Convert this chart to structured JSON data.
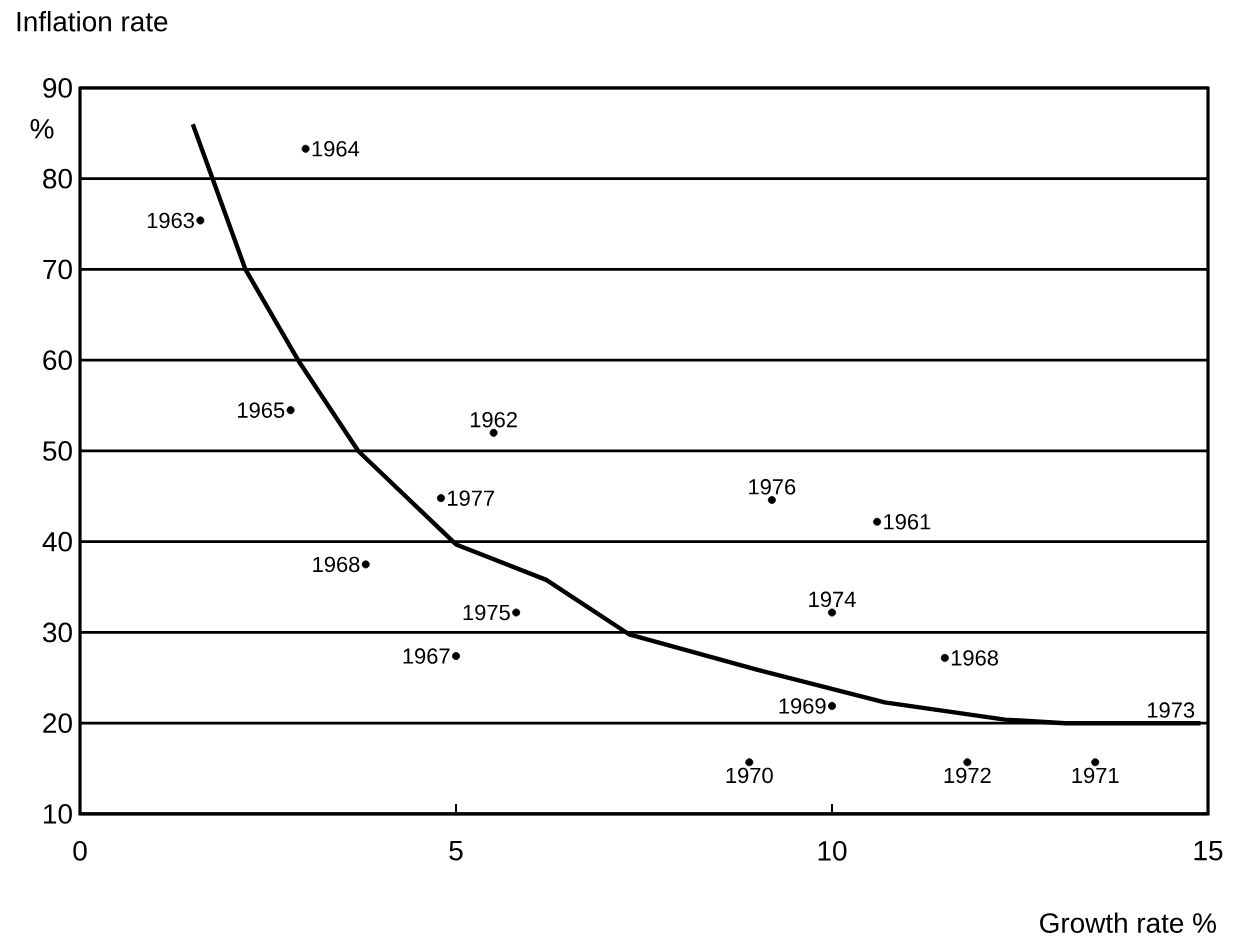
{
  "chart_data": {
    "type": "scatter",
    "xlabel": "Growth rate %",
    "ylabel": "Inflation rate",
    "annotations": [
      "%",
      {
        "text": "1964",
        "x": 3.0,
        "y": 83.3
      },
      {
        "text": "1963",
        "x": 1.6,
        "y": 75.4
      },
      {
        "text": "1965",
        "x": 2.8,
        "y": 54.5
      },
      {
        "text": "1962",
        "x": 5.5,
        "y": 52
      },
      {
        "text": "1977",
        "x": 4.8,
        "y": 44.8
      },
      {
        "text": "1976",
        "x": 9.2,
        "y": 44.6
      },
      {
        "text": "1961",
        "x": 10.6,
        "y": 42.2
      },
      {
        "text": "1968",
        "x": 3.8,
        "y": 37.5
      },
      {
        "text": "1974",
        "x": 10.0,
        "y": 32.2
      },
      {
        "text": "1975",
        "x": 5.8,
        "y": 32.2
      },
      {
        "text": "1967",
        "x": 5.0,
        "y": 27.4
      },
      {
        "text": "1968",
        "x": 11.5,
        "y": 27.2
      },
      {
        "text": "1969",
        "x": 10.0,
        "y": 21.9
      },
      {
        "text": "1970",
        "x": 8.9,
        "y": 15.7
      },
      {
        "text": "1972",
        "x": 11.8,
        "y": 15.7
      },
      {
        "text": "1971",
        "x": 13.5,
        "y": 15.7
      },
      {
        "text": "1973",
        "x": 14.9,
        "y": 20
      }
    ],
    "xlim": [
      0,
      15
    ],
    "ylim": [
      10,
      90
    ],
    "xticks": [
      0,
      5,
      10,
      15
    ],
    "yticks": [
      10,
      20,
      30,
      40,
      50,
      60,
      70,
      80,
      90
    ],
    "grid": "y",
    "marker": "circle",
    "series": [
      {
        "color": "#000000",
        "x": [
          3.0,
          1.6,
          2.8,
          5.5,
          4.8,
          9.2,
          10.6,
          3.8,
          10.0,
          5.8,
          5.0,
          11.5,
          10.0,
          8.9,
          11.8,
          13.5
        ],
        "values": [
          83.3,
          75.4,
          54.5,
          52,
          44.8,
          44.6,
          42.2,
          37.5,
          32.2,
          32.2,
          27.4,
          27.2,
          21.9,
          15.7,
          15.7,
          15.7
        ]
      },
      {
        "type": "line",
        "marker": "none",
        "color": "#000000",
        "x": [
          1.5,
          2.2,
          2.9,
          3.7,
          5.0,
          6.2,
          7.3,
          9.0,
          10.7,
          12.3,
          13.1,
          14.9
        ],
        "values": [
          86,
          70,
          60,
          50,
          39.7,
          35.8,
          29.8,
          25.9,
          22.3,
          20.4,
          20,
          20
        ]
      }
    ]
  }
}
